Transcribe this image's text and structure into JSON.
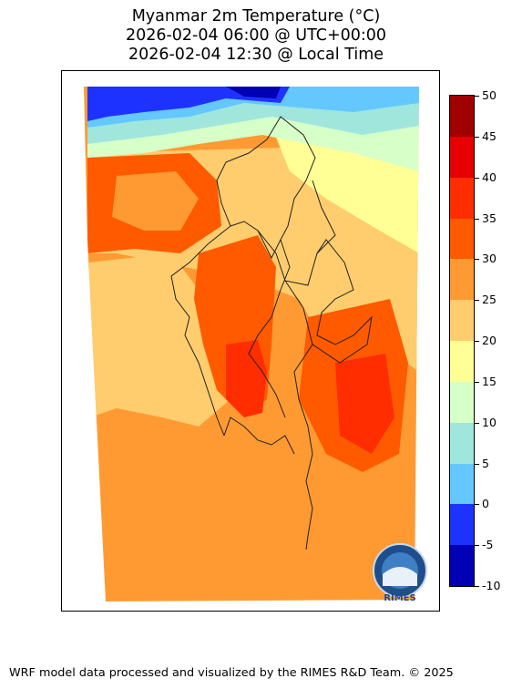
{
  "title": {
    "line1": "Myanmar 2m Temperature (°C)",
    "line2": "2026-02-04 06:00 @ UTC+00:00",
    "line3": "2026-02-04 12:30 @ Local Time"
  },
  "colorbar": {
    "levels": [
      -10,
      -5,
      0,
      5,
      10,
      15,
      20,
      25,
      30,
      35,
      40,
      45,
      50
    ],
    "labels": [
      "50",
      "45",
      "40",
      "35",
      "30",
      "25",
      "20",
      "15",
      "10",
      "5",
      "0",
      "-5",
      "-10"
    ],
    "colors": [
      "#0000b4",
      "#1e32ff",
      "#64c8ff",
      "#a0e6dc",
      "#d7ffc8",
      "#ffff96",
      "#ffcd6e",
      "#ff9a32",
      "#ff5a00",
      "#ff2d00",
      "#e60000",
      "#a00000"
    ]
  },
  "logo": {
    "text": "RIMES"
  },
  "footer": {
    "text": "WRF model data processed and visualized by the RIMES R&D Team. © 2025"
  }
}
